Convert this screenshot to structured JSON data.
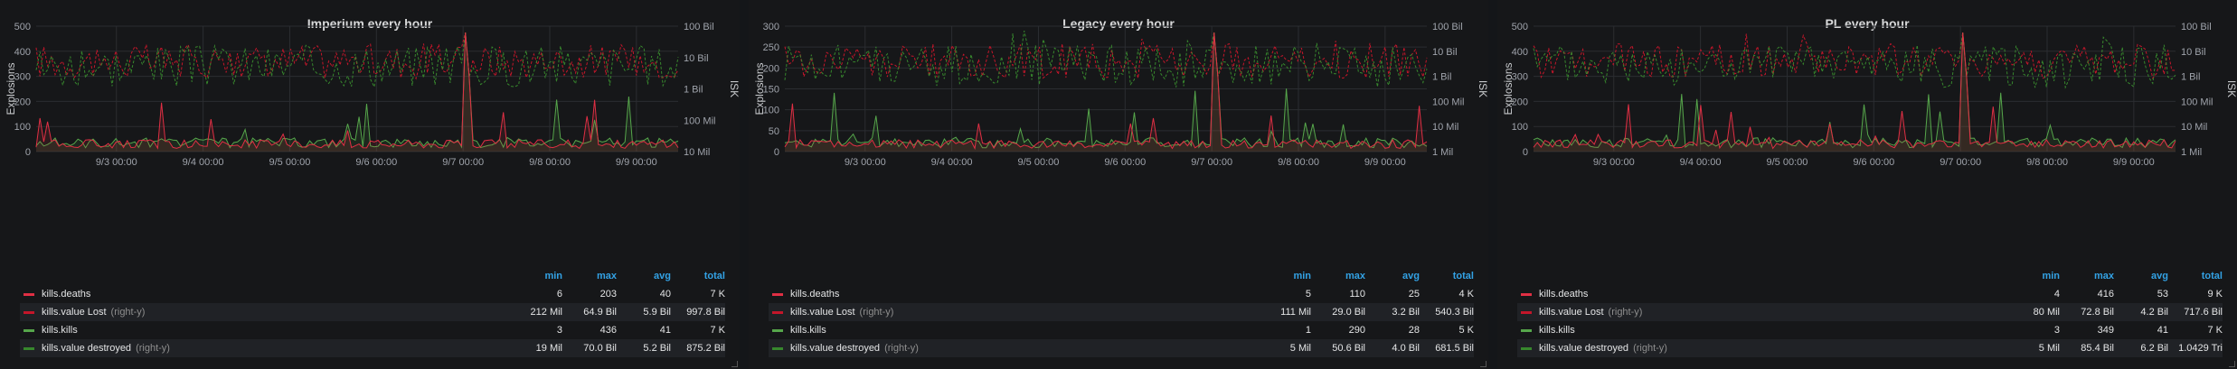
{
  "legend_headers": {
    "min": "min",
    "max": "max",
    "avg": "avg",
    "total": "total"
  },
  "colors": {
    "deaths": "#e02f44",
    "value_lost": "#c4162a",
    "kills": "#56a64b",
    "value_destroyed": "#37872d",
    "grid": "#2b2d31",
    "text": "#9fa3ab"
  },
  "panels": [
    {
      "title": "Imperium every hour",
      "ylabel": "Explosions",
      "y2label": "ISK",
      "yticks": [
        "500",
        "400",
        "300",
        "200",
        "100",
        "0"
      ],
      "y2ticks": [
        "100 Bil",
        "10 Bil",
        "1 Bil",
        "100 Mil",
        "10 Mil"
      ],
      "xticks": [
        "9/3 00:00",
        "9/4 00:00",
        "9/5 00:00",
        "9/6 00:00",
        "9/7 00:00",
        "9/8 00:00",
        "9/9 00:00"
      ],
      "legend": [
        {
          "name": "kills.deaths",
          "right_y": "",
          "min": "6",
          "max": "203",
          "avg": "40",
          "total": "7 K"
        },
        {
          "name": "kills.value Lost",
          "right_y": "(right-y)",
          "min": "212 Mil",
          "max": "64.9 Bil",
          "avg": "5.9 Bil",
          "total": "997.8 Bil"
        },
        {
          "name": "kills.kills",
          "right_y": "",
          "min": "3",
          "max": "436",
          "avg": "41",
          "total": "7 K"
        },
        {
          "name": "kills.value destroyed",
          "right_y": "(right-y)",
          "min": "19 Mil",
          "max": "70.0 Bil",
          "avg": "5.2 Bil",
          "total": "875.2 Bil"
        }
      ]
    },
    {
      "title": "Legacy every hour",
      "ylabel": "Explosions",
      "y2label": "ISK",
      "yticks": [
        "300",
        "250",
        "200",
        "150",
        "100",
        "50",
        "0"
      ],
      "y2ticks": [
        "100 Bil",
        "10 Bil",
        "1 Bil",
        "100 Mil",
        "10 Mil",
        "1 Mil"
      ],
      "xticks": [
        "9/3 00:00",
        "9/4 00:00",
        "9/5 00:00",
        "9/6 00:00",
        "9/7 00:00",
        "9/8 00:00",
        "9/9 00:00"
      ],
      "legend": [
        {
          "name": "kills.deaths",
          "right_y": "",
          "min": "5",
          "max": "110",
          "avg": "25",
          "total": "4 K"
        },
        {
          "name": "kills.value Lost",
          "right_y": "(right-y)",
          "min": "111 Mil",
          "max": "29.0 Bil",
          "avg": "3.2 Bil",
          "total": "540.3 Bil"
        },
        {
          "name": "kills.kills",
          "right_y": "",
          "min": "1",
          "max": "290",
          "avg": "28",
          "total": "5 K"
        },
        {
          "name": "kills.value destroyed",
          "right_y": "(right-y)",
          "min": "5 Mil",
          "max": "50.6 Bil",
          "avg": "4.0 Bil",
          "total": "681.5 Bil"
        }
      ]
    },
    {
      "title": "PL every hour",
      "ylabel": "Explosions",
      "y2label": "ISK",
      "yticks": [
        "500",
        "400",
        "300",
        "200",
        "100",
        "0"
      ],
      "y2ticks": [
        "100 Bil",
        "10 Bil",
        "1 Bil",
        "100 Mil",
        "10 Mil",
        "1 Mil"
      ],
      "xticks": [
        "9/3 00:00",
        "9/4 00:00",
        "9/5 00:00",
        "9/6 00:00",
        "9/7 00:00",
        "9/8 00:00",
        "9/9 00:00"
      ],
      "legend": [
        {
          "name": "kills.deaths",
          "right_y": "",
          "min": "4",
          "max": "416",
          "avg": "53",
          "total": "9 K"
        },
        {
          "name": "kills.value Lost",
          "right_y": "(right-y)",
          "min": "80 Mil",
          "max": "72.8 Bil",
          "avg": "4.2 Bil",
          "total": "717.6 Bil"
        },
        {
          "name": "kills.kills",
          "right_y": "",
          "min": "3",
          "max": "349",
          "avg": "41",
          "total": "7 K"
        },
        {
          "name": "kills.value destroyed",
          "right_y": "(right-y)",
          "min": "5 Mil",
          "max": "85.4 Bil",
          "avg": "6.2 Bil",
          "total": "1.0429 Tri"
        }
      ]
    }
  ],
  "chart_data": [
    {
      "type": "line",
      "title": "Imperium every hour",
      "ylabel": "Explosions",
      "y2label": "ISK",
      "ylim": [
        0,
        500
      ],
      "y2lim_log": [
        "10 Mil",
        "100 Bil"
      ],
      "x": [
        "9/3 00:00",
        "9/4 00:00",
        "9/5 00:00",
        "9/6 00:00",
        "9/7 00:00",
        "9/8 00:00",
        "9/9 00:00"
      ],
      "series": [
        {
          "name": "kills.deaths",
          "axis": "left"
        },
        {
          "name": "kills.value Lost",
          "axis": "right"
        },
        {
          "name": "kills.kills",
          "axis": "left"
        },
        {
          "name": "kills.value destroyed",
          "axis": "right"
        }
      ]
    },
    {
      "type": "line",
      "title": "Legacy every hour",
      "ylabel": "Explosions",
      "y2label": "ISK",
      "ylim": [
        0,
        300
      ],
      "y2lim_log": [
        "1 Mil",
        "100 Bil"
      ],
      "x": [
        "9/3 00:00",
        "9/4 00:00",
        "9/5 00:00",
        "9/6 00:00",
        "9/7 00:00",
        "9/8 00:00",
        "9/9 00:00"
      ],
      "series": [
        {
          "name": "kills.deaths",
          "axis": "left"
        },
        {
          "name": "kills.value Lost",
          "axis": "right"
        },
        {
          "name": "kills.kills",
          "axis": "left"
        },
        {
          "name": "kills.value destroyed",
          "axis": "right"
        }
      ]
    },
    {
      "type": "line",
      "title": "PL every hour",
      "ylabel": "Explosions",
      "y2label": "ISK",
      "ylim": [
        0,
        500
      ],
      "y2lim_log": [
        "1 Mil",
        "100 Bil"
      ],
      "x": [
        "9/3 00:00",
        "9/4 00:00",
        "9/5 00:00",
        "9/6 00:00",
        "9/7 00:00",
        "9/8 00:00",
        "9/9 00:00"
      ],
      "series": [
        {
          "name": "kills.deaths",
          "axis": "left"
        },
        {
          "name": "kills.value Lost",
          "axis": "right"
        },
        {
          "name": "kills.kills",
          "axis": "left"
        },
        {
          "name": "kills.value destroyed",
          "axis": "right"
        }
      ]
    }
  ]
}
